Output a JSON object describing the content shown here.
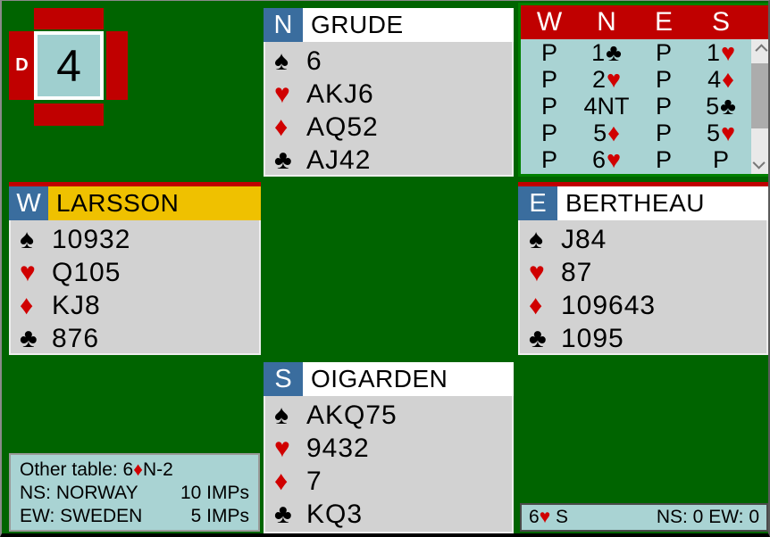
{
  "colors": {
    "background": "#006400",
    "panel_red": "#C00000",
    "suit_red": "#D00000",
    "teal": "#A9D3D3",
    "hand_gray": "#D2D2D2",
    "seat_blue": "#3A6D9E",
    "active_yellow": "#EFC100",
    "frame_green": "#008000",
    "board_center": "#9FCFCF"
  },
  "board": {
    "number": "4",
    "dealer_marker": "D",
    "vulnerable_flaps": [
      "N",
      "E",
      "S",
      "W"
    ]
  },
  "hands": {
    "north": {
      "seat": "N",
      "player": "GRUDE",
      "name_bg": "#FFFFFF",
      "vul_bar": false,
      "suits": [
        {
          "symbol": "♠",
          "color": "black",
          "cards": "6"
        },
        {
          "symbol": "♥",
          "color": "red",
          "cards": "AKJ6"
        },
        {
          "symbol": "♦",
          "color": "red",
          "cards": "AQ52"
        },
        {
          "symbol": "♣",
          "color": "black",
          "cards": "AJ42"
        }
      ]
    },
    "west": {
      "seat": "W",
      "player": "LARSSON",
      "name_bg": "#EFC100",
      "vul_bar": true,
      "suits": [
        {
          "symbol": "♠",
          "color": "black",
          "cards": "10932"
        },
        {
          "symbol": "♥",
          "color": "red",
          "cards": "Q105"
        },
        {
          "symbol": "♦",
          "color": "red",
          "cards": "KJ8"
        },
        {
          "symbol": "♣",
          "color": "black",
          "cards": "876"
        }
      ]
    },
    "east": {
      "seat": "E",
      "player": "BERTHEAU",
      "name_bg": "#FFFFFF",
      "vul_bar": true,
      "suits": [
        {
          "symbol": "♠",
          "color": "black",
          "cards": "J84"
        },
        {
          "symbol": "♥",
          "color": "red",
          "cards": "87"
        },
        {
          "symbol": "♦",
          "color": "red",
          "cards": "109643"
        },
        {
          "symbol": "♣",
          "color": "black",
          "cards": "1095"
        }
      ]
    },
    "south": {
      "seat": "S",
      "player": "OIGARDEN",
      "name_bg": "#FFFFFF",
      "vul_bar": false,
      "suits": [
        {
          "symbol": "♠",
          "color": "black",
          "cards": "AKQ75"
        },
        {
          "symbol": "♥",
          "color": "red",
          "cards": "9432"
        },
        {
          "symbol": "♦",
          "color": "red",
          "cards": "7"
        },
        {
          "symbol": "♣",
          "color": "black",
          "cards": "KQ3"
        }
      ]
    }
  },
  "auction": {
    "columns": [
      "W",
      "N",
      "E",
      "S"
    ],
    "rows": [
      [
        {
          "c": "P"
        },
        {
          "c": "1",
          "s": "♣"
        },
        {
          "c": "P"
        },
        {
          "c": "1",
          "s": "♥"
        }
      ],
      [
        {
          "c": "P"
        },
        {
          "c": "2",
          "s": "♥"
        },
        {
          "c": "P"
        },
        {
          "c": "4",
          "s": "♦"
        }
      ],
      [
        {
          "c": "P"
        },
        {
          "c": "4NT"
        },
        {
          "c": "P"
        },
        {
          "c": "5",
          "s": "♣"
        }
      ],
      [
        {
          "c": "P"
        },
        {
          "c": "5",
          "s": "♦"
        },
        {
          "c": "P"
        },
        {
          "c": "5",
          "s": "♥"
        }
      ],
      [
        {
          "c": "P"
        },
        {
          "c": "6",
          "s": "♥"
        },
        {
          "c": "P"
        },
        {
          "c": "P"
        }
      ]
    ]
  },
  "other_table": {
    "heading_prefix": "Other table: 6",
    "heading_suit": "♦",
    "heading_suffix": "N-2",
    "rows": [
      {
        "team": "NS: NORWAY",
        "imps": "10 IMPs"
      },
      {
        "team": "EW: SWEDEN",
        "imps": "5 IMPs"
      }
    ]
  },
  "status_bar": {
    "contract_level": "6",
    "contract_suit": "♥",
    "contract_declarer": " S",
    "score_text": "NS: 0 EW: 0"
  }
}
